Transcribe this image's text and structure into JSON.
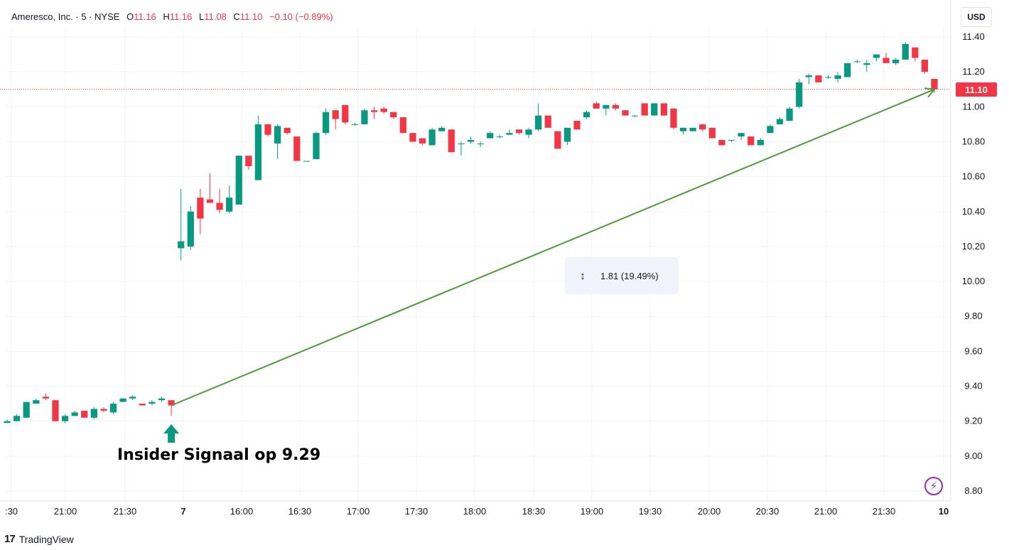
{
  "legend": {
    "symbol": "Ameresco, Inc. · 5 · NYSE",
    "open_label": "O",
    "open": "11.16",
    "high_label": "H",
    "high": "11.16",
    "low_label": "L",
    "low": "11.08",
    "close_label": "C",
    "close": "11.10",
    "change": "−0.10 (−0.89%)"
  },
  "currency_button": "USD",
  "last_price_tag": "11.10",
  "measure": {
    "icon": "vertical-measure-icon",
    "text": "1.81 (19.49%)"
  },
  "annotation": "Insider Signaal op 9.29",
  "branding": {
    "logo_mark": "17",
    "name": "TradingView"
  },
  "bolt_icon": "lightning-icon",
  "colors": {
    "up": "#089981",
    "down": "#f23645",
    "arrow": "#4c9a3a",
    "bolt": "#9c27b0"
  },
  "chart_data": {
    "type": "candlestick",
    "y_ticks": [
      "11.40",
      "11.20",
      "11.00",
      "10.80",
      "10.60",
      "10.40",
      "10.20",
      "10.00",
      "9.80",
      "9.60",
      "9.40",
      "9.20",
      "9.00",
      "8.80"
    ],
    "y_range": [
      8.76,
      11.44
    ],
    "x_ticks": [
      ":30",
      "21:00",
      "21:30",
      "7",
      "16:00",
      "16:30",
      "17:00",
      "17:30",
      "18:00",
      "18:30",
      "19:00",
      "19:30",
      "20:00",
      "20:30",
      "21:00",
      "21:30",
      "10"
    ],
    "last_price": 11.1,
    "grid": true,
    "candles": [
      {
        "o": 9.19,
        "h": 9.21,
        "l": 9.19,
        "c": 9.2
      },
      {
        "o": 9.2,
        "h": 9.24,
        "l": 9.2,
        "c": 9.23
      },
      {
        "o": 9.22,
        "h": 9.31,
        "l": 9.22,
        "c": 9.31
      },
      {
        "o": 9.3,
        "h": 9.33,
        "l": 9.3,
        "c": 9.32
      },
      {
        "o": 9.34,
        "h": 9.36,
        "l": 9.32,
        "c": 9.33
      },
      {
        "o": 9.32,
        "h": 9.32,
        "l": 9.2,
        "c": 9.2
      },
      {
        "o": 9.2,
        "h": 9.24,
        "l": 9.19,
        "c": 9.23
      },
      {
        "o": 9.23,
        "h": 9.26,
        "l": 9.23,
        "c": 9.25
      },
      {
        "o": 9.26,
        "h": 9.26,
        "l": 9.22,
        "c": 9.22
      },
      {
        "o": 9.22,
        "h": 9.28,
        "l": 9.21,
        "c": 9.27
      },
      {
        "o": 9.27,
        "h": 9.28,
        "l": 9.25,
        "c": 9.26
      },
      {
        "o": 9.25,
        "h": 9.31,
        "l": 9.24,
        "c": 9.3
      },
      {
        "o": 9.31,
        "h": 9.33,
        "l": 9.31,
        "c": 9.33
      },
      {
        "o": 9.33,
        "h": 9.35,
        "l": 9.32,
        "c": 9.34
      },
      {
        "o": 9.3,
        "h": 9.3,
        "l": 9.29,
        "c": 9.29
      },
      {
        "o": 9.3,
        "h": 9.32,
        "l": 9.29,
        "c": 9.31
      },
      {
        "o": 9.32,
        "h": 9.34,
        "l": 9.31,
        "c": 9.33
      },
      {
        "o": 9.32,
        "h": 9.32,
        "l": 9.23,
        "c": 9.29
      },
      {
        "o": 10.19,
        "h": 10.53,
        "l": 10.12,
        "c": 10.23
      },
      {
        "o": 10.2,
        "h": 10.43,
        "l": 10.18,
        "c": 10.4
      },
      {
        "o": 10.48,
        "h": 10.53,
        "l": 10.27,
        "c": 10.36
      },
      {
        "o": 10.47,
        "h": 10.62,
        "l": 10.45,
        "c": 10.45
      },
      {
        "o": 10.45,
        "h": 10.53,
        "l": 10.39,
        "c": 10.41
      },
      {
        "o": 10.4,
        "h": 10.55,
        "l": 10.39,
        "c": 10.48
      },
      {
        "o": 10.44,
        "h": 10.72,
        "l": 10.44,
        "c": 10.72
      },
      {
        "o": 10.72,
        "h": 10.72,
        "l": 10.64,
        "c": 10.66
      },
      {
        "o": 10.58,
        "h": 10.95,
        "l": 10.58,
        "c": 10.9
      },
      {
        "o": 10.9,
        "h": 10.9,
        "l": 10.83,
        "c": 10.84
      },
      {
        "o": 10.79,
        "h": 10.9,
        "l": 10.7,
        "c": 10.89
      },
      {
        "o": 10.88,
        "h": 10.88,
        "l": 10.84,
        "c": 10.85
      },
      {
        "o": 10.83,
        "h": 10.83,
        "l": 10.69,
        "c": 10.69
      },
      {
        "o": 10.69,
        "h": 10.69,
        "l": 10.69,
        "c": 10.69
      },
      {
        "o": 10.7,
        "h": 10.86,
        "l": 10.7,
        "c": 10.85
      },
      {
        "o": 10.85,
        "h": 10.99,
        "l": 10.84,
        "c": 10.97
      },
      {
        "o": 10.98,
        "h": 10.98,
        "l": 10.87,
        "c": 10.93
      },
      {
        "o": 11.01,
        "h": 11.01,
        "l": 10.9,
        "c": 10.91
      },
      {
        "o": 10.9,
        "h": 10.91,
        "l": 10.89,
        "c": 10.9
      },
      {
        "o": 10.9,
        "h": 10.99,
        "l": 10.9,
        "c": 10.98
      },
      {
        "o": 10.98,
        "h": 11.0,
        "l": 10.93,
        "c": 10.97
      },
      {
        "o": 10.99,
        "h": 11.0,
        "l": 10.96,
        "c": 10.97
      },
      {
        "o": 10.97,
        "h": 10.97,
        "l": 10.93,
        "c": 10.94
      },
      {
        "o": 10.94,
        "h": 10.94,
        "l": 10.85,
        "c": 10.85
      },
      {
        "o": 10.85,
        "h": 10.85,
        "l": 10.8,
        "c": 10.8
      },
      {
        "o": 10.82,
        "h": 10.82,
        "l": 10.78,
        "c": 10.79
      },
      {
        "o": 10.78,
        "h": 10.88,
        "l": 10.78,
        "c": 10.87
      },
      {
        "o": 10.86,
        "h": 10.89,
        "l": 10.86,
        "c": 10.88
      },
      {
        "o": 10.87,
        "h": 10.87,
        "l": 10.74,
        "c": 10.74
      },
      {
        "o": 10.79,
        "h": 10.8,
        "l": 10.72,
        "c": 10.79
      },
      {
        "o": 10.8,
        "h": 10.83,
        "l": 10.79,
        "c": 10.81
      },
      {
        "o": 10.79,
        "h": 10.8,
        "l": 10.77,
        "c": 10.79
      },
      {
        "o": 10.82,
        "h": 10.86,
        "l": 10.82,
        "c": 10.85
      },
      {
        "o": 10.83,
        "h": 10.84,
        "l": 10.82,
        "c": 10.83
      },
      {
        "o": 10.84,
        "h": 10.87,
        "l": 10.84,
        "c": 10.85
      },
      {
        "o": 10.87,
        "h": 10.87,
        "l": 10.84,
        "c": 10.85
      },
      {
        "o": 10.84,
        "h": 10.88,
        "l": 10.82,
        "c": 10.87
      },
      {
        "o": 10.87,
        "h": 11.02,
        "l": 10.86,
        "c": 10.95
      },
      {
        "o": 10.95,
        "h": 10.95,
        "l": 10.88,
        "c": 10.88
      },
      {
        "o": 10.86,
        "h": 10.86,
        "l": 10.76,
        "c": 10.76
      },
      {
        "o": 10.8,
        "h": 10.88,
        "l": 10.78,
        "c": 10.88
      },
      {
        "o": 10.92,
        "h": 10.92,
        "l": 10.87,
        "c": 10.87
      },
      {
        "o": 10.94,
        "h": 10.98,
        "l": 10.93,
        "c": 10.97
      },
      {
        "o": 11.02,
        "h": 11.03,
        "l": 10.99,
        "c": 10.99
      },
      {
        "o": 10.99,
        "h": 11.01,
        "l": 10.95,
        "c": 11.01
      },
      {
        "o": 11.01,
        "h": 11.02,
        "l": 10.98,
        "c": 10.99
      },
      {
        "o": 10.98,
        "h": 10.98,
        "l": 10.95,
        "c": 10.95
      },
      {
        "o": 10.95,
        "h": 10.95,
        "l": 10.94,
        "c": 10.95
      },
      {
        "o": 11.02,
        "h": 11.02,
        "l": 10.95,
        "c": 10.95
      },
      {
        "o": 10.95,
        "h": 11.02,
        "l": 10.95,
        "c": 11.02
      },
      {
        "o": 11.02,
        "h": 11.02,
        "l": 10.95,
        "c": 10.95
      },
      {
        "o": 10.99,
        "h": 10.99,
        "l": 10.87,
        "c": 10.88
      },
      {
        "o": 10.86,
        "h": 10.88,
        "l": 10.84,
        "c": 10.88
      },
      {
        "o": 10.86,
        "h": 10.88,
        "l": 10.86,
        "c": 10.88
      },
      {
        "o": 10.9,
        "h": 10.9,
        "l": 10.86,
        "c": 10.87
      },
      {
        "o": 10.88,
        "h": 10.88,
        "l": 10.82,
        "c": 10.82
      },
      {
        "o": 10.81,
        "h": 10.81,
        "l": 10.78,
        "c": 10.78
      },
      {
        "o": 10.81,
        "h": 10.81,
        "l": 10.8,
        "c": 10.81
      },
      {
        "o": 10.83,
        "h": 10.85,
        "l": 10.81,
        "c": 10.85
      },
      {
        "o": 10.83,
        "h": 10.83,
        "l": 10.78,
        "c": 10.78
      },
      {
        "o": 10.78,
        "h": 10.82,
        "l": 10.78,
        "c": 10.81
      },
      {
        "o": 10.85,
        "h": 10.9,
        "l": 10.85,
        "c": 10.89
      },
      {
        "o": 10.9,
        "h": 10.94,
        "l": 10.9,
        "c": 10.93
      },
      {
        "o": 10.92,
        "h": 11.0,
        "l": 10.92,
        "c": 10.99
      },
      {
        "o": 11.0,
        "h": 11.16,
        "l": 10.99,
        "c": 11.14
      },
      {
        "o": 11.17,
        "h": 11.19,
        "l": 11.13,
        "c": 11.18
      },
      {
        "o": 11.18,
        "h": 11.18,
        "l": 11.14,
        "c": 11.14
      },
      {
        "o": 11.17,
        "h": 11.18,
        "l": 11.16,
        "c": 11.17
      },
      {
        "o": 11.16,
        "h": 11.2,
        "l": 11.14,
        "c": 11.18
      },
      {
        "o": 11.17,
        "h": 11.25,
        "l": 11.17,
        "c": 11.25
      },
      {
        "o": 11.26,
        "h": 11.27,
        "l": 11.25,
        "c": 11.26
      },
      {
        "o": 11.24,
        "h": 11.27,
        "l": 11.2,
        "c": 11.25
      },
      {
        "o": 11.28,
        "h": 11.3,
        "l": 11.26,
        "c": 11.3
      },
      {
        "o": 11.28,
        "h": 11.31,
        "l": 11.25,
        "c": 11.25
      },
      {
        "o": 11.25,
        "h": 11.28,
        "l": 11.24,
        "c": 11.27
      },
      {
        "o": 11.27,
        "h": 11.37,
        "l": 11.27,
        "c": 11.36
      },
      {
        "o": 11.34,
        "h": 11.34,
        "l": 11.26,
        "c": 11.28
      },
      {
        "o": 11.27,
        "h": 11.27,
        "l": 11.19,
        "c": 11.2
      },
      {
        "o": 11.16,
        "h": 11.16,
        "l": 11.08,
        "c": 11.1
      }
    ],
    "trend_arrow": {
      "from_price": 9.29,
      "to_price": 11.1,
      "change": 1.81,
      "change_pct": 19.49
    }
  }
}
